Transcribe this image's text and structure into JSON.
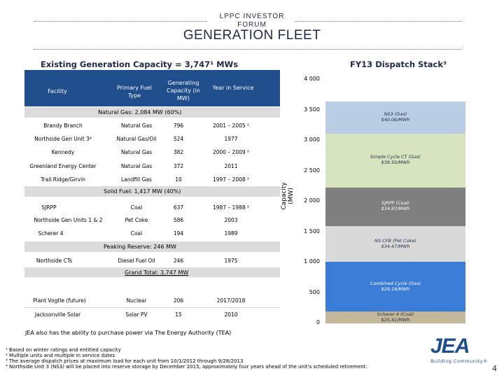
{
  "header": {
    "small_title": "LPPC INVESTOR FORUM",
    "title": "GENERATION FLEET"
  },
  "left": {
    "heading": "Existing Generation Capacity = 3,747¹ MWs",
    "columns": [
      "Facility",
      "Primary Fuel Type",
      "Generating Capacity (in MW)",
      "Year in Service"
    ],
    "group_natural_gas": "Natural Gas: 2,084 MW (60%)",
    "natural_gas_rows": [
      [
        "Brandy Branch",
        "Natural Gas",
        "796",
        "2001 – 2005 ²"
      ],
      [
        "Northside Gen Unit 3⁴",
        "Natural Gas/Oil",
        "524",
        "1977"
      ],
      [
        "Kennedy",
        "Natural Gas",
        "382",
        "2000 – 2009 ²"
      ],
      [
        "Greenland Energy Center",
        "Natural Gas",
        "372",
        "2011"
      ],
      [
        "Trail Ridge/Girvin",
        "Landfill Gas",
        "10",
        "1997 – 2008 ²"
      ]
    ],
    "group_solid_fuel": "Solid Fuel: 1,417 MW (40%)",
    "solid_fuel_rows": [
      [
        "SJRPP",
        "Coal",
        "637",
        "1987 – 1988 ²"
      ],
      [
        "Northside Gen Units 1 & 2",
        "Pet Coke",
        "586",
        "2003"
      ],
      [
        "Scherer 4",
        "Coal",
        "194",
        "1989"
      ]
    ],
    "group_peaking": "Peaking Reserve: 246 MW",
    "peaking_rows": [
      [
        "Northside CTs",
        "Diesel Fuel Oil",
        "246",
        "1975"
      ]
    ],
    "grand_total": "Grand Total: 3,747 MW",
    "future_rows": [
      [
        "Plant Vogtle (future)",
        "Nuclear",
        "206",
        "2017/2018"
      ],
      [
        "Jacksonville Solar",
        "Solar PV",
        "15",
        "2010"
      ]
    ],
    "purchase_note": "JEA also has the ability to purchase power via The Energy Authority (TEA)"
  },
  "chart_data": {
    "type": "bar",
    "title": "FY13 Dispatch Stack³",
    "ylabel": "Capacity (MW)",
    "ylim": [
      0,
      4000
    ],
    "yticks": [
      "0",
      "500",
      "1 000",
      "1 500",
      "2 000",
      "2 500",
      "3 000",
      "3 500",
      "4 000"
    ],
    "stack": [
      {
        "name": "Scherer 4 (Coal)",
        "price": "$25.41/MWh",
        "from": 0,
        "to": 194,
        "color": "#c4b89a"
      },
      {
        "name": "Combined Cycle (Gas)",
        "price": "$29.18/MWh",
        "from": 194,
        "to": 1010,
        "color": "#3a7dd6"
      },
      {
        "name": "NS CFB (Pet Coke)",
        "price": "$34.47/MWh",
        "from": 1010,
        "to": 1596,
        "color": "#d9d9d9"
      },
      {
        "name": "SJRPP (Coal)",
        "price": "$34.87/MWh",
        "from": 1596,
        "to": 2233,
        "color": "#7f7f7f"
      },
      {
        "name": "Simple Cycle CT (Gas)",
        "price": "$39.50/MWh",
        "from": 2233,
        "to": 3120,
        "color": "#d7e4bd"
      },
      {
        "name": "NS3 (Gas)",
        "price": "$40.06/MWh",
        "from": 3120,
        "to": 3644,
        "color": "#b9cde5"
      }
    ]
  },
  "footnotes": [
    "¹ Based on winter ratings and entitled capacity",
    "² Multiple units and multiple in service dates",
    "³ The average dispatch prices at maximum load for each unit from 10/1/2012 through 9/28/2013",
    "⁴ Northside Unit 3 (NS3) will be placed into reserve storage by December 2015, approximately four years ahead of the unit's scheduled retirement."
  ],
  "logo": {
    "brand": "JEA",
    "tagline": "Building Community®"
  },
  "page_number": "4",
  "colors": {
    "navy": "#1f4e8c",
    "title": "#1f2a44",
    "band": "#dcdcdc"
  }
}
